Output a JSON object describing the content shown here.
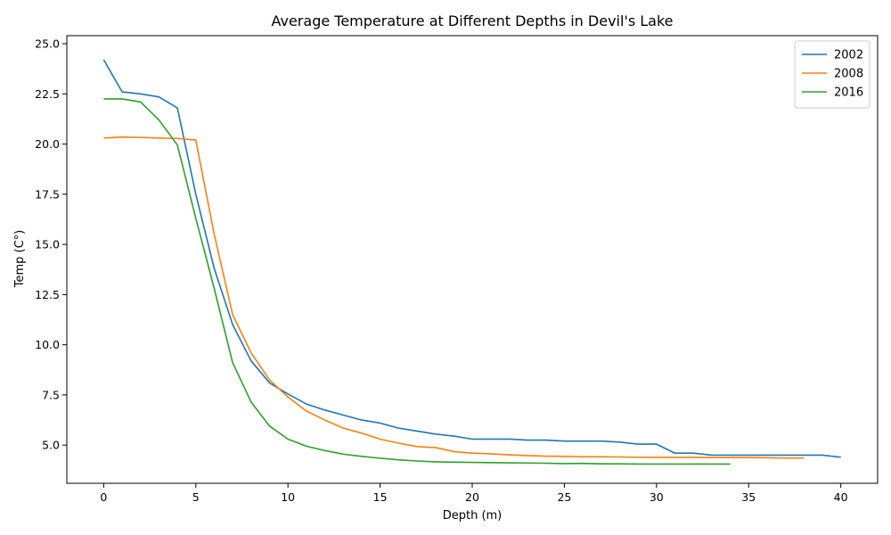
{
  "chart_data": {
    "type": "line",
    "title": "Average Temperature at Different Depths in Devil's Lake",
    "xlabel": "Depth (m)",
    "ylabel": "Temp (C°)",
    "xlim": [
      -2,
      42
    ],
    "ylim": [
      3.1,
      25.4
    ],
    "xticks": [
      0,
      5,
      10,
      15,
      20,
      25,
      30,
      35,
      40
    ],
    "xtick_labels": [
      "0",
      "5",
      "10",
      "15",
      "20",
      "25",
      "30",
      "35",
      "40"
    ],
    "yticks": [
      5.0,
      7.5,
      10.0,
      12.5,
      15.0,
      17.5,
      20.0,
      22.5,
      25.0
    ],
    "ytick_labels": [
      "5.0",
      "7.5",
      "10.0",
      "12.5",
      "15.0",
      "17.5",
      "20.0",
      "22.5",
      "25.0"
    ],
    "grid": false,
    "legend_position": "top-right",
    "series": [
      {
        "name": "2002",
        "color": "#1f77b4",
        "x": [
          0,
          1,
          2,
          3,
          4,
          5,
          6,
          7,
          8,
          9,
          10,
          11,
          12,
          13,
          14,
          15,
          16,
          17,
          18,
          19,
          20,
          21,
          22,
          23,
          24,
          25,
          26,
          27,
          28,
          29,
          30,
          31,
          32,
          33,
          34,
          35,
          36,
          37,
          38,
          39,
          40
        ],
        "y": [
          24.2,
          22.6,
          22.5,
          22.35,
          21.8,
          17.5,
          13.8,
          11.0,
          9.2,
          8.1,
          7.55,
          7.05,
          6.75,
          6.5,
          6.25,
          6.1,
          5.85,
          5.7,
          5.55,
          5.45,
          5.3,
          5.3,
          5.3,
          5.25,
          5.25,
          5.2,
          5.2,
          5.2,
          5.15,
          5.05,
          5.05,
          4.6,
          4.6,
          4.5,
          4.5,
          4.5,
          4.5,
          4.5,
          4.5,
          4.5,
          4.4
        ]
      },
      {
        "name": "2008",
        "color": "#ff7f0e",
        "x": [
          0,
          1,
          2,
          3,
          4,
          5,
          6,
          7,
          8,
          9,
          10,
          11,
          12,
          13,
          14,
          15,
          16,
          17,
          18,
          19,
          20,
          21,
          22,
          23,
          24,
          25,
          26,
          27,
          28,
          29,
          30,
          31,
          32,
          33,
          34,
          35,
          36,
          37,
          38
        ],
        "y": [
          20.3,
          20.35,
          20.33,
          20.3,
          20.28,
          20.2,
          15.5,
          11.5,
          9.6,
          8.25,
          7.4,
          6.7,
          6.25,
          5.85,
          5.6,
          5.3,
          5.1,
          4.93,
          4.88,
          4.68,
          4.6,
          4.57,
          4.52,
          4.48,
          4.45,
          4.44,
          4.42,
          4.42,
          4.41,
          4.4,
          4.39,
          4.39,
          4.39,
          4.38,
          4.38,
          4.38,
          4.37,
          4.36,
          4.36
        ]
      },
      {
        "name": "2016",
        "color": "#2ca02c",
        "x": [
          0,
          1,
          2,
          3,
          4,
          5,
          6,
          7,
          8,
          9,
          10,
          11,
          12,
          13,
          14,
          15,
          16,
          17,
          18,
          19,
          20,
          21,
          22,
          23,
          24,
          25,
          26,
          27,
          28,
          29,
          30,
          31,
          32,
          33,
          34
        ],
        "y": [
          22.25,
          22.25,
          22.1,
          21.2,
          19.95,
          16.3,
          12.8,
          9.1,
          7.15,
          5.95,
          5.3,
          4.95,
          4.73,
          4.55,
          4.44,
          4.35,
          4.27,
          4.21,
          4.17,
          4.15,
          4.14,
          4.13,
          4.12,
          4.11,
          4.1,
          4.08,
          4.09,
          4.07,
          4.07,
          4.06,
          4.06,
          4.06,
          4.06,
          4.06,
          4.06
        ]
      }
    ]
  }
}
